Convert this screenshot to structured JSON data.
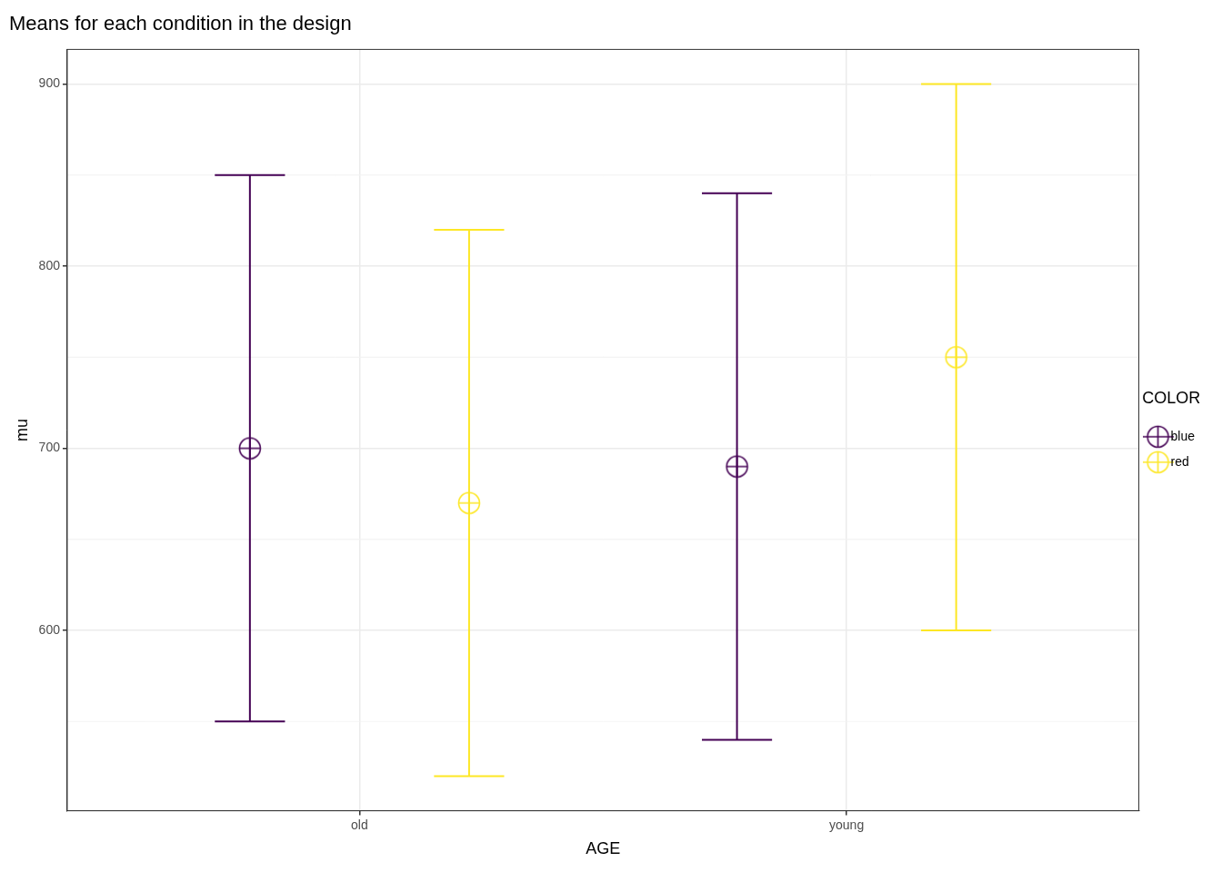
{
  "chart_data": {
    "type": "scatter",
    "title": "Means for each condition in the design",
    "x_label": "AGE",
    "y_label": "mu",
    "categories": [
      "old",
      "young"
    ],
    "series": [
      {
        "name": "blue",
        "color": "#440154",
        "values": [
          700,
          690
        ],
        "lower": [
          550,
          540
        ],
        "upper": [
          850,
          840
        ]
      },
      {
        "name": "red",
        "color": "#fde725",
        "values": [
          670,
          750
        ],
        "lower": [
          520,
          600
        ],
        "upper": [
          820,
          900
        ]
      }
    ],
    "ylim": [
      501,
      919
    ],
    "yticks": [
      600,
      700,
      800,
      900
    ],
    "grid": true,
    "legend": "right",
    "legend_title": "COLOR",
    "marker": "circle-cross"
  }
}
